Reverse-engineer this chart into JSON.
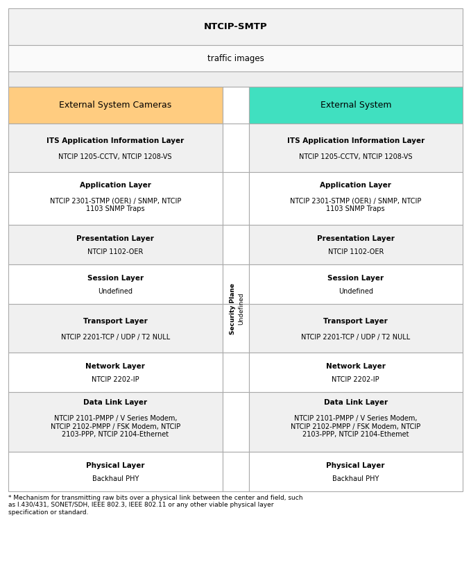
{
  "title": "NTCIP-SMTP",
  "subtitle": "traffic images",
  "col_left_header": "External System Cameras",
  "col_right_header": "External System",
  "col_left_color": "#FFCC80",
  "col_right_color": "#40E0C0",
  "security_plane_text": "Security Plane",
  "undefined_text": "Undefined",
  "rows": [
    {
      "left_bold": "ITS Application Information Layer",
      "left_normal": "NTCIP 1205-CCTV, NTCIP 1208-VS",
      "right_bold": "ITS Application Information Layer",
      "right_normal": "NTCIP 1205-CCTV, NTCIP 1208-VS",
      "has_mid_text": false
    },
    {
      "left_bold": "Application Layer",
      "left_normal": "NTCIP 2301-STMP (OER) / SNMP, NTCIP\n1103 SNMP Traps",
      "right_bold": "Application Layer",
      "right_normal": "NTCIP 2301-STMP (OER) / SNMP, NTCIP\n1103 SNMP Traps",
      "has_mid_text": false
    },
    {
      "left_bold": "Presentation Layer",
      "left_normal": "NTCIP 1102-OER",
      "right_bold": "Presentation Layer",
      "right_normal": "NTCIP 1102-OER",
      "has_mid_text": true
    },
    {
      "left_bold": "Session Layer",
      "left_normal": "Undefined",
      "right_bold": "Session Layer",
      "right_normal": "Undefined",
      "has_mid_text": true
    },
    {
      "left_bold": "Transport Layer",
      "left_normal": "NTCIP 2201-TCP / UDP / T2 NULL",
      "right_bold": "Transport Layer",
      "right_normal": "NTCIP 2201-TCP / UDP / T2 NULL",
      "has_mid_text": true
    },
    {
      "left_bold": "Network Layer",
      "left_normal": "NTCIP 2202-IP",
      "right_bold": "Network Layer",
      "right_normal": "NTCIP 2202-IP",
      "has_mid_text": true
    },
    {
      "left_bold": "Data Link Layer",
      "left_normal": "NTCIP 2101-PMPP / V Series Modem,\nNTCIP 2102-PMPP / FSK Modem, NTCIP\n2103-PPP, NTCIP 2104-Ethernet",
      "right_bold": "Data Link Layer",
      "right_normal": "NTCIP 2101-PMPP / V Series Modem,\nNTCIP 2102-PMPP / FSK Modem, NTCIP\n2103-PPP, NTCIP 2104-Ethemet",
      "has_mid_text": false
    },
    {
      "left_bold": "Physical Layer",
      "left_normal": "Backhaul PHY",
      "right_bold": "Physical Layer",
      "right_normal": "Backhaul PHY",
      "has_mid_text": false
    }
  ],
  "footnote": "* Mechanism for transmitting raw bits over a physical link between the center and field, such\nas I.430/431, SONET/SDH, IEEE 802.3, IEEE 802.11 or any other viable physical layer\nspecification or standard.",
  "bg_color": "#FFFFFF",
  "border_color": "#AAAAAA",
  "row_bg_alt": "#F0F0F0",
  "row_bg_white": "#FFFFFF"
}
